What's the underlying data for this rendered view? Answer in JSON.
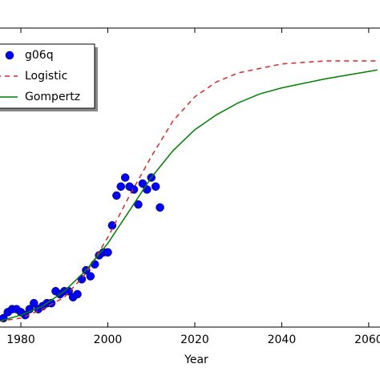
{
  "chart_data": {
    "type": "scatter",
    "x_label": "Year",
    "xlim": [
      1975.2,
      2062.6
    ],
    "xticks": [
      1980,
      2000,
      2020,
      2040,
      2060
    ],
    "ylim": [
      0,
      1
    ],
    "legend": "upper left",
    "series": [
      {
        "name": "g06q",
        "color": "#0000ff",
        "linestyle": "marker",
        "x": [
          1976,
          1977,
          1978,
          1979,
          1980,
          1981,
          1982,
          1983,
          1984,
          1985,
          1986,
          1987,
          1988,
          1989,
          1990,
          1991,
          1992,
          1993,
          1994,
          1995,
          1996,
          1997,
          1998,
          1999,
          2000,
          2001,
          2002,
          2003,
          2004,
          2005,
          2006,
          2007,
          2008,
          2009,
          2010,
          2011,
          2012
        ],
        "values": [
          0.03,
          0.05,
          0.06,
          0.06,
          0.05,
          0.04,
          0.06,
          0.08,
          0.06,
          0.07,
          0.08,
          0.08,
          0.12,
          0.11,
          0.12,
          0.12,
          0.1,
          0.11,
          0.16,
          0.19,
          0.17,
          0.21,
          0.24,
          0.25,
          0.25,
          0.34,
          0.44,
          0.47,
          0.5,
          0.47,
          0.46,
          0.41,
          0.48,
          0.46,
          0.5,
          0.47,
          0.4
        ]
      },
      {
        "name": "Logistic",
        "color": "#d62728",
        "linestyle": "dashed",
        "x": [
          1975,
          1980,
          1985,
          1990,
          1995,
          2000,
          2005,
          2010,
          2015,
          2020,
          2025,
          2030,
          2040,
          2050,
          2062
        ],
        "values": [
          0.02,
          0.03,
          0.06,
          0.1,
          0.18,
          0.3,
          0.44,
          0.57,
          0.69,
          0.77,
          0.82,
          0.85,
          0.88,
          0.89,
          0.89
        ]
      },
      {
        "name": "Gompertz",
        "color": "#007f00",
        "linestyle": "solid",
        "x": [
          1975,
          1980,
          1985,
          1990,
          1995,
          2000,
          2005,
          2010,
          2015,
          2020,
          2025,
          2030,
          2035,
          2040,
          2050,
          2062
        ],
        "values": [
          0.02,
          0.04,
          0.07,
          0.12,
          0.19,
          0.28,
          0.39,
          0.5,
          0.59,
          0.66,
          0.71,
          0.75,
          0.78,
          0.8,
          0.83,
          0.86
        ]
      }
    ]
  }
}
